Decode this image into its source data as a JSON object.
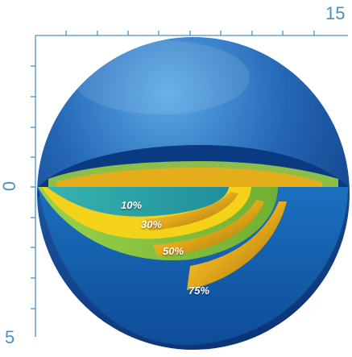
{
  "axis": {
    "top_max_label": "15",
    "left_zero_label": "0",
    "left_bottom_label": "5"
  },
  "rings": [
    {
      "label": "10%",
      "color": "#2ea6a6"
    },
    {
      "label": "30%",
      "color": "#f2c818"
    },
    {
      "label": "50%",
      "color": "#8cc63e"
    },
    {
      "label": "75%",
      "color": "#1e7cc4"
    }
  ],
  "colors": {
    "axis": "#4a90c8",
    "sphere_dark": "#0d3f86",
    "sphere_light": "#3d93d8",
    "gold": "#d9a21a"
  }
}
